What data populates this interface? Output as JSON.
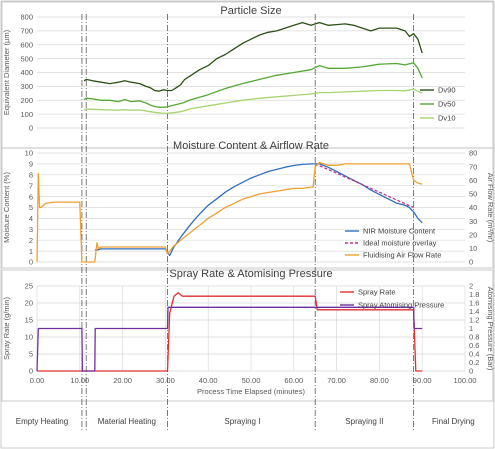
{
  "chart_data": [
    {
      "type": "line",
      "title": "Particle Size",
      "ylabel": "Equivalent Diameter (µm)",
      "ylim": [
        0,
        800
      ],
      "yticks": [
        "0",
        "100",
        "200",
        "300",
        "400",
        "500",
        "600",
        "700",
        "800"
      ],
      "gridlines": true,
      "legend_position": "right",
      "series": [
        {
          "name": "Dv90",
          "color": "#2d5016",
          "x": [
            11,
            11.5,
            13,
            15,
            17,
            19,
            20.5,
            22,
            24,
            25.5,
            26.5,
            27.5,
            28.5,
            29.5,
            30.5,
            31.5,
            32.5,
            33.5,
            34.5,
            36,
            38,
            40,
            42,
            44,
            46,
            48,
            50,
            52,
            54,
            56,
            58,
            60,
            62,
            64,
            65,
            66,
            68,
            70,
            72,
            74,
            76,
            78,
            80,
            82,
            84,
            86,
            87,
            88,
            89,
            90
          ],
          "y": [
            340,
            350,
            340,
            330,
            320,
            330,
            340,
            330,
            320,
            300,
            290,
            270,
            265,
            275,
            270,
            270,
            290,
            310,
            350,
            380,
            420,
            450,
            500,
            530,
            570,
            610,
            640,
            670,
            690,
            700,
            720,
            740,
            760,
            740,
            750,
            760,
            740,
            745,
            750,
            740,
            720,
            700,
            720,
            720,
            720,
            700,
            660,
            680,
            640,
            540
          ]
        },
        {
          "name": "Dv50",
          "color": "#55a834",
          "x": [
            11,
            11.5,
            13,
            15,
            17,
            19,
            20.5,
            22,
            24,
            25.5,
            26.5,
            27.5,
            28.5,
            30,
            32,
            34,
            36,
            40,
            44,
            48,
            52,
            56,
            60,
            64,
            66,
            68,
            72,
            76,
            80,
            84,
            86,
            88,
            89,
            90
          ],
          "y": [
            205,
            215,
            210,
            200,
            200,
            190,
            205,
            190,
            195,
            180,
            165,
            155,
            150,
            150,
            165,
            180,
            205,
            240,
            285,
            320,
            350,
            380,
            400,
            420,
            450,
            430,
            430,
            440,
            460,
            465,
            455,
            470,
            430,
            360
          ]
        },
        {
          "name": "Dv10",
          "color": "#a6d46f",
          "x": [
            11,
            11.5,
            13,
            15,
            17,
            19,
            20.5,
            22,
            24,
            26,
            28,
            30,
            32,
            34,
            36,
            40,
            44,
            48,
            52,
            56,
            60,
            64,
            66,
            68,
            72,
            76,
            80,
            84,
            86,
            88,
            89,
            90
          ],
          "y": [
            130,
            138,
            135,
            132,
            130,
            128,
            132,
            128,
            130,
            120,
            110,
            105,
            110,
            120,
            140,
            160,
            180,
            200,
            215,
            225,
            235,
            245,
            255,
            255,
            260,
            265,
            270,
            270,
            268,
            280,
            265,
            250
          ]
        }
      ]
    },
    {
      "type": "line",
      "title": "Moisture Content & Airflow Rate",
      "ylabel": "Moisture Content (%)",
      "y2label": "Air Flow Rate (m³/hr)",
      "ylim": [
        0,
        10
      ],
      "y2lim": [
        0,
        80
      ],
      "yticks": [
        "0",
        "1",
        "2",
        "3",
        "4",
        "5",
        "6",
        "7",
        "8",
        "9",
        "10"
      ],
      "y2ticks": [
        "0",
        "10",
        "20",
        "30",
        "40",
        "50",
        "60",
        "70",
        "80"
      ],
      "gridlines": true,
      "legend_position": "bottom-right",
      "series": [
        {
          "name": "NIR Moisture Content",
          "color": "#2f6fbf",
          "axis": "left",
          "x": [
            13.5,
            14,
            15,
            20,
            25,
            30,
            31,
            32,
            34,
            36,
            38,
            40,
            42,
            44,
            46,
            48,
            50,
            52,
            54,
            56,
            58,
            60,
            62,
            64,
            65,
            66,
            68,
            70,
            72,
            74,
            76,
            78,
            80,
            82,
            84,
            86,
            87,
            88,
            89,
            90
          ],
          "y": [
            1.1,
            1.1,
            1.2,
            1.2,
            1.2,
            1.2,
            0.6,
            1.4,
            2.5,
            3.5,
            4.4,
            5.2,
            5.8,
            6.4,
            6.9,
            7.3,
            7.7,
            8.0,
            8.3,
            8.5,
            8.7,
            8.85,
            8.95,
            9.0,
            9.0,
            9.0,
            8.7,
            8.3,
            7.9,
            7.5,
            7.1,
            6.6,
            6.2,
            5.8,
            5.4,
            5.2,
            5.0,
            4.6,
            4.0,
            3.6
          ]
        },
        {
          "name": "Ideal moisture overlay",
          "color": "#c0338a",
          "axis": "left",
          "dashed": true,
          "x": [
            65,
            68,
            72,
            76,
            80,
            84,
            88
          ],
          "y": [
            9.0,
            8.5,
            7.8,
            7.1,
            6.4,
            5.7,
            5.0
          ]
        },
        {
          "name": "Fluidising Air Flow Rate",
          "color": "#f0a030",
          "axis": "right",
          "x": [
            0,
            0.3,
            0.6,
            1,
            2,
            4,
            6,
            8,
            9.5,
            10,
            10.5,
            13.5,
            14,
            14.3,
            15,
            16,
            20,
            25,
            30,
            30.5,
            31,
            31.5,
            32,
            34,
            36,
            38,
            40,
            42,
            44,
            46,
            48,
            50,
            52,
            54,
            56,
            58,
            60,
            62,
            64,
            64.5,
            65,
            66,
            68,
            70,
            72,
            74,
            76,
            78,
            80,
            82,
            84,
            86,
            87,
            88,
            89,
            90
          ],
          "y": [
            0,
            65,
            40,
            40,
            43,
            44,
            44,
            44,
            44,
            44,
            0,
            0,
            14,
            10,
            11,
            11,
            11,
            11,
            11,
            6,
            8,
            10,
            12,
            17,
            22,
            27,
            32,
            36,
            40,
            43,
            46,
            48,
            50,
            51,
            52,
            53,
            54,
            54,
            55,
            55,
            70,
            73,
            71,
            71,
            72,
            72,
            72,
            72,
            72,
            72,
            72,
            72,
            72,
            60,
            58,
            57
          ]
        }
      ]
    },
    {
      "type": "line",
      "title": "Spray Rate & Atomising Pressure",
      "xlabel": "Process Time Elapsed (minutes)",
      "ylabel": "Spray Rate (g/min)",
      "y2label": "Atomising Pressure (Bar)",
      "ylim": [
        0,
        25
      ],
      "y2lim": [
        0,
        2
      ],
      "xlim": [
        0,
        100
      ],
      "yticks": [
        "0",
        "5",
        "10",
        "15",
        "20",
        "25"
      ],
      "y2ticks": [
        "0",
        "0.2",
        "0.4",
        "0.6",
        "0.8",
        "1",
        "1.2",
        "1.4",
        "1.6",
        "1.8",
        "2"
      ],
      "xticks": [
        "0.00",
        "10.00",
        "20.00",
        "30.00",
        "40.00",
        "50.00",
        "60.00",
        "70.00",
        "80.00",
        "90.00",
        "100.00"
      ],
      "gridlines": true,
      "legend_position": "top-right",
      "series": [
        {
          "name": "Spray Rate",
          "color": "#e03030",
          "axis": "left",
          "x": [
            0,
            30.5,
            31,
            32,
            33,
            34,
            36,
            40,
            45,
            50,
            55,
            60,
            64,
            65,
            65.5,
            66,
            70,
            75,
            80,
            85,
            88,
            88.5,
            89,
            90
          ],
          "y": [
            0,
            0,
            17,
            22,
            23,
            22,
            22,
            22,
            22,
            22,
            22,
            22,
            22,
            22,
            18,
            18,
            18,
            18,
            18,
            18,
            18,
            0,
            0,
            0
          ]
        },
        {
          "name": "Spray Atomising Pressure",
          "color": "#7030a0",
          "axis": "right",
          "x": [
            0,
            0.3,
            10.5,
            10.6,
            13.5,
            13.6,
            30.5,
            30.6,
            65,
            65.1,
            88,
            88.1,
            90
          ],
          "y": [
            0,
            1.0,
            1.0,
            0,
            0,
            1.0,
            1.0,
            1.5,
            1.5,
            1.5,
            1.5,
            1.0,
            1.0
          ]
        }
      ]
    }
  ],
  "phases": [
    {
      "label": "Empty Heating",
      "start": 0,
      "end": 10.5
    },
    {
      "label": "Material Heating",
      "start": 11.5,
      "end": 30.5
    },
    {
      "label": "Spraying I",
      "start": 31,
      "end": 65
    },
    {
      "label": "Spraying II",
      "start": 65,
      "end": 88
    },
    {
      "label": "Final Drying",
      "start": 88,
      "end": 100
    }
  ],
  "phase_boundaries": [
    10.5,
    11.5,
    30.5,
    65,
    88
  ],
  "colors": {
    "grid": "#d9d9d9",
    "frame": "#bfbfbf",
    "divider": "#595959"
  }
}
